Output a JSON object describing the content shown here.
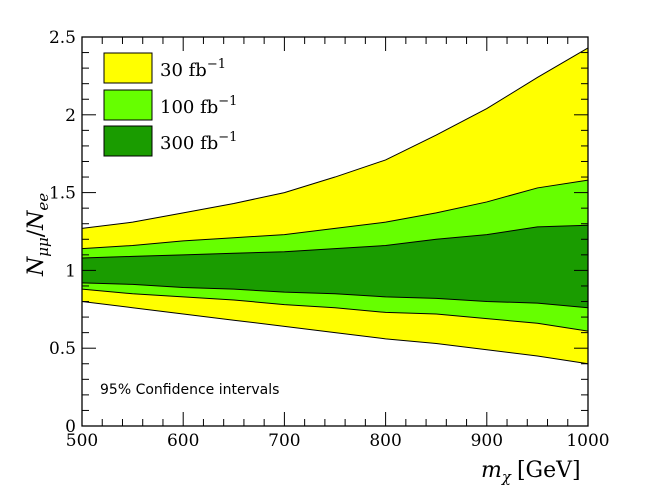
{
  "chart_data": {
    "type": "area",
    "title": "",
    "xlabel": "m_χ [GeV]",
    "xlabel_main": "m",
    "xlabel_sub": "χ",
    "xlabel_unit": "[GeV]",
    "ylabel": "N_μμ/N_ee",
    "ylabel_parts": {
      "n1": "N",
      "sub1": "μμ",
      "slash": "/",
      "n2": "N",
      "sub2": "ee"
    },
    "xlim": [
      500,
      1000
    ],
    "ylim": [
      0,
      2.5
    ],
    "xticks": [
      500,
      600,
      700,
      800,
      900,
      1000
    ],
    "yticks": [
      0,
      0.5,
      1,
      1.5,
      2,
      2.5
    ],
    "ytick_labels": [
      "0",
      "0.5",
      "1",
      "1.5",
      "2",
      "2.5"
    ],
    "annotation": "95% Confidence intervals",
    "x": [
      500,
      550,
      600,
      650,
      700,
      750,
      800,
      850,
      900,
      950,
      1000
    ],
    "series": [
      {
        "name": "30 fb⁻¹",
        "label_main": "30 fb",
        "label_sup": "−1",
        "color": "#ffff00",
        "upper": [
          1.27,
          1.31,
          1.37,
          1.43,
          1.5,
          1.6,
          1.71,
          1.87,
          2.04,
          2.24,
          2.43
        ],
        "lower": [
          0.8,
          0.76,
          0.72,
          0.68,
          0.64,
          0.6,
          0.56,
          0.53,
          0.49,
          0.45,
          0.4
        ]
      },
      {
        "name": "100 fb⁻¹",
        "label_main": "100 fb",
        "label_sup": "−1",
        "color": "#66ff00",
        "upper": [
          1.14,
          1.16,
          1.19,
          1.21,
          1.23,
          1.27,
          1.31,
          1.37,
          1.44,
          1.53,
          1.58
        ],
        "lower": [
          0.88,
          0.85,
          0.83,
          0.81,
          0.78,
          0.76,
          0.73,
          0.72,
          0.69,
          0.66,
          0.61
        ]
      },
      {
        "name": "300 fb⁻¹",
        "label_main": "300 fb",
        "label_sup": "−1",
        "color": "#1a9c00",
        "upper": [
          1.08,
          1.09,
          1.1,
          1.11,
          1.12,
          1.14,
          1.16,
          1.2,
          1.23,
          1.28,
          1.29
        ],
        "lower": [
          0.92,
          0.91,
          0.89,
          0.88,
          0.86,
          0.85,
          0.83,
          0.82,
          0.8,
          0.79,
          0.76
        ]
      }
    ],
    "legend_position": "top-left"
  }
}
